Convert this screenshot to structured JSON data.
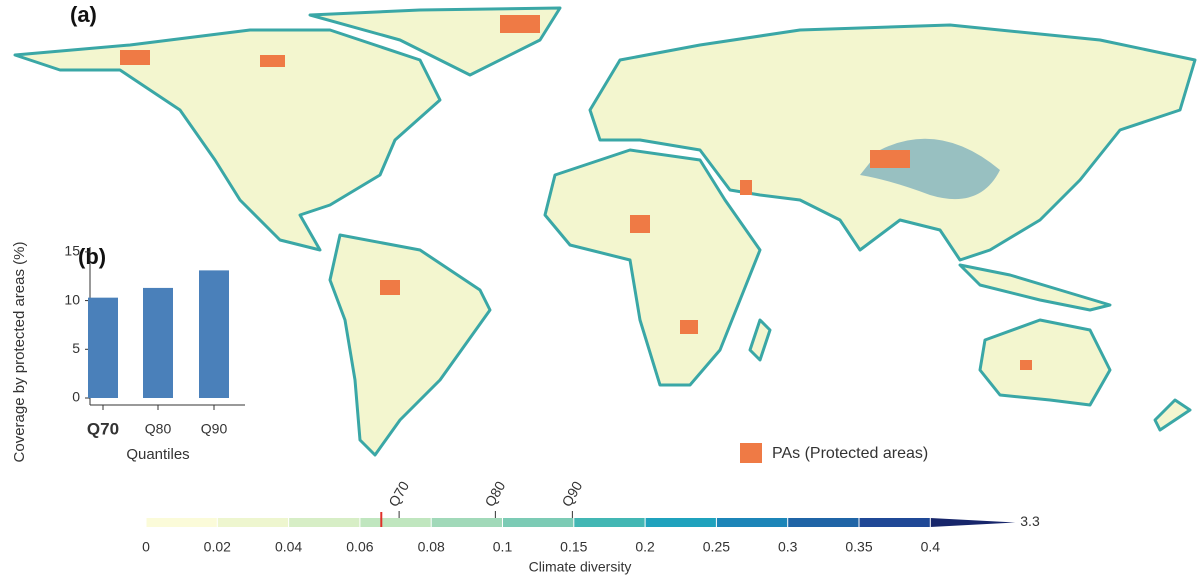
{
  "panel_a": {
    "label": "(a)",
    "legend": "PAs (Protected areas)",
    "legend_color": "#ef7a45"
  },
  "chart_data": {
    "type": "bar",
    "panel_label": "(b)",
    "categories": [
      "Q70",
      "Q80",
      "Q90"
    ],
    "values": [
      10.3,
      11.3,
      13.1
    ],
    "color": "#4a80ba",
    "bold_index": 0,
    "ylim": [
      0,
      15.5
    ],
    "yticks": [
      0,
      5,
      10,
      15
    ],
    "ylabel": "Coverage by protected areas (%)",
    "xlabel": "Quantiles"
  },
  "colorbar": {
    "title": "Climate diversity",
    "breaks": [
      0,
      0.02,
      0.04,
      0.06,
      0.08,
      0.1,
      0.15,
      0.2,
      0.25,
      0.3,
      0.35,
      0.4
    ],
    "max": 3.3,
    "colors": [
      "#fbfbd9",
      "#eef6cf",
      "#d7eec6",
      "#c0e6bf",
      "#a1d9b9",
      "#7ccbb5",
      "#43b7b4",
      "#1fa2bd",
      "#1c85b8",
      "#1f64a6",
      "#1f4896",
      "#17266b"
    ],
    "quantiles": [
      {
        "value": 0.071,
        "label": "Q70"
      },
      {
        "value": 0.098,
        "label": "Q80"
      },
      {
        "value": 0.149,
        "label": "Q90"
      }
    ],
    "marker": 0.066,
    "marker_color": "#e0312b"
  }
}
